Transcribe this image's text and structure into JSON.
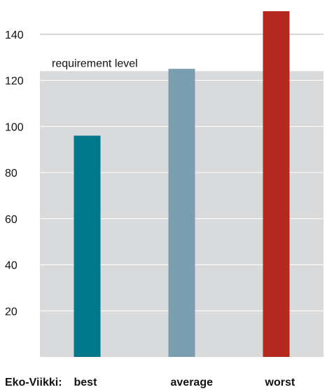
{
  "chart_data": {
    "type": "bar",
    "title": "",
    "xlabel": "",
    "ylabel": "",
    "group_label": "Eko-Viikki:",
    "categories": [
      "best",
      "average",
      "worst"
    ],
    "values": [
      96,
      125,
      150
    ],
    "colors": [
      "#00788a",
      "#7b9db0",
      "#b3291f"
    ],
    "ylim": [
      0,
      150
    ],
    "yticks": [
      20,
      40,
      60,
      80,
      100,
      120,
      140
    ],
    "grid": true,
    "reference": {
      "label": "requirement level",
      "value": 124,
      "fill_color": "#d9dadc"
    },
    "gridline_color": "#aeb0b3"
  }
}
